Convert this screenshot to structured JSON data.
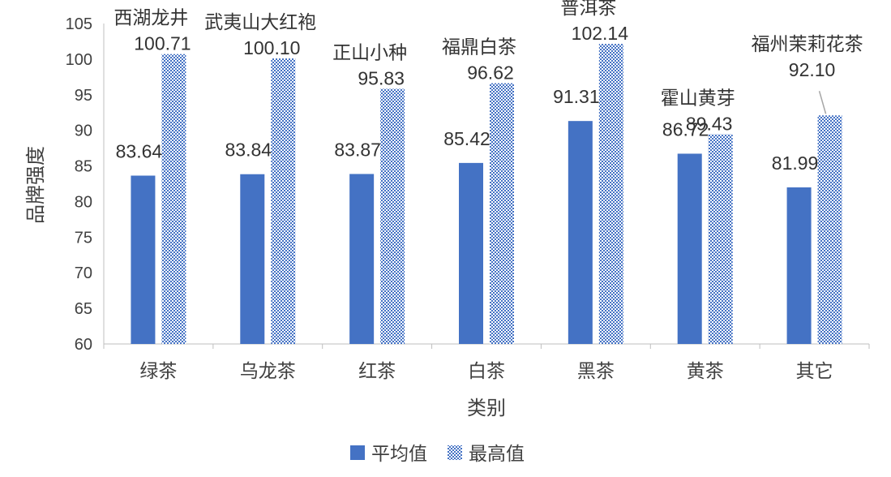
{
  "chart_data": {
    "type": "bar",
    "xlabel": "类别",
    "ylabel": "品牌强度",
    "ylim": [
      60,
      105
    ],
    "yticks": [
      60,
      65,
      70,
      75,
      80,
      85,
      90,
      95,
      100,
      105
    ],
    "categories": [
      "绿茶",
      "乌龙茶",
      "红茶",
      "白茶",
      "黑茶",
      "黄茶",
      "其它"
    ],
    "series": [
      {
        "name": "平均值",
        "values": [
          83.64,
          83.84,
          83.87,
          85.42,
          91.31,
          86.72,
          81.99
        ],
        "labels": [
          "83.64",
          "83.84",
          "83.87",
          "85.42",
          "91.31",
          "86.72",
          "81.99"
        ],
        "color": "#4472C4",
        "pattern": "solid"
      },
      {
        "name": "最高值",
        "values": [
          100.71,
          100.1,
          95.83,
          96.62,
          102.14,
          89.43,
          92.1
        ],
        "labels": [
          "100.71",
          "100.10",
          "95.83",
          "96.62",
          "102.14",
          "89.43",
          "92.10"
        ],
        "color": "#4472C4",
        "pattern": "checker"
      }
    ],
    "annotations": [
      "西湖龙井",
      "武夷山大红袍",
      "正山小种",
      "福鼎白茶",
      "普洱茶",
      "霍山黄芽",
      "福州茉莉花茶"
    ],
    "grid": false,
    "legend_position": "bottom"
  }
}
